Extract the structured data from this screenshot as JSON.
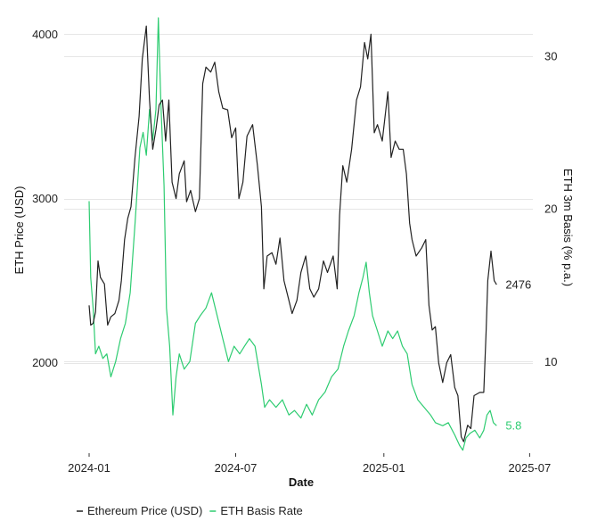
{
  "chart_data": {
    "type": "line",
    "title": "",
    "xlabel": "Date",
    "ylabel_left": "ETH Price (USD)",
    "ylabel_right": "ETH 3m Basis (% p.a.)",
    "x_range": [
      "2023-12-01",
      "2025-07-05"
    ],
    "x_ticks": [
      {
        "date": "2024-01-01",
        "label": "2024-01"
      },
      {
        "date": "2024-07-01",
        "label": "2024-07"
      },
      {
        "date": "2025-01-01",
        "label": "2025-01"
      },
      {
        "date": "2025-07-01",
        "label": "2025-07"
      }
    ],
    "y_left": {
      "range": [
        1450,
        4100
      ],
      "ticks": [
        2000,
        3000,
        4000
      ],
      "tick_labels": [
        "2000",
        "3000",
        "4000"
      ]
    },
    "y_right": {
      "range": [
        4.0,
        32.5
      ],
      "ticks": [
        10,
        20,
        30
      ],
      "tick_labels": [
        "10",
        "20",
        "30"
      ]
    },
    "grid": "horizontal",
    "legend_position": "bottom",
    "series": [
      {
        "name": "Ethereum Price (USD)",
        "axis": "left",
        "color": "#222222",
        "end_label": "2476",
        "points": [
          [
            "2024-01-01",
            2350
          ],
          [
            "2024-01-03",
            2230
          ],
          [
            "2024-01-06",
            2240
          ],
          [
            "2024-01-09",
            2310
          ],
          [
            "2024-01-12",
            2620
          ],
          [
            "2024-01-15",
            2520
          ],
          [
            "2024-01-20",
            2480
          ],
          [
            "2024-01-24",
            2230
          ],
          [
            "2024-01-28",
            2280
          ],
          [
            "2024-02-02",
            2300
          ],
          [
            "2024-02-07",
            2380
          ],
          [
            "2024-02-10",
            2500
          ],
          [
            "2024-02-14",
            2750
          ],
          [
            "2024-02-18",
            2880
          ],
          [
            "2024-02-22",
            2950
          ],
          [
            "2024-02-27",
            3250
          ],
          [
            "2024-03-03",
            3500
          ],
          [
            "2024-03-07",
            3850
          ],
          [
            "2024-03-12",
            4050
          ],
          [
            "2024-03-16",
            3600
          ],
          [
            "2024-03-20",
            3300
          ],
          [
            "2024-03-24",
            3420
          ],
          [
            "2024-03-28",
            3570
          ],
          [
            "2024-04-01",
            3600
          ],
          [
            "2024-04-05",
            3350
          ],
          [
            "2024-04-09",
            3600
          ],
          [
            "2024-04-13",
            3100
          ],
          [
            "2024-04-18",
            3000
          ],
          [
            "2024-04-22",
            3150
          ],
          [
            "2024-04-28",
            3230
          ],
          [
            "2024-05-01",
            2980
          ],
          [
            "2024-05-06",
            3050
          ],
          [
            "2024-05-12",
            2920
          ],
          [
            "2024-05-17",
            3000
          ],
          [
            "2024-05-21",
            3700
          ],
          [
            "2024-05-25",
            3800
          ],
          [
            "2024-05-31",
            3770
          ],
          [
            "2024-06-05",
            3830
          ],
          [
            "2024-06-10",
            3650
          ],
          [
            "2024-06-15",
            3550
          ],
          [
            "2024-06-21",
            3540
          ],
          [
            "2024-06-26",
            3370
          ],
          [
            "2024-07-01",
            3430
          ],
          [
            "2024-07-05",
            3000
          ],
          [
            "2024-07-10",
            3100
          ],
          [
            "2024-07-15",
            3380
          ],
          [
            "2024-07-22",
            3450
          ],
          [
            "2024-07-28",
            3200
          ],
          [
            "2024-08-02",
            2950
          ],
          [
            "2024-08-05",
            2450
          ],
          [
            "2024-08-09",
            2650
          ],
          [
            "2024-08-15",
            2670
          ],
          [
            "2024-08-20",
            2600
          ],
          [
            "2024-08-25",
            2760
          ],
          [
            "2024-08-30",
            2500
          ],
          [
            "2024-09-05",
            2380
          ],
          [
            "2024-09-09",
            2300
          ],
          [
            "2024-09-15",
            2380
          ],
          [
            "2024-09-20",
            2550
          ],
          [
            "2024-09-26",
            2650
          ],
          [
            "2024-10-01",
            2450
          ],
          [
            "2024-10-06",
            2400
          ],
          [
            "2024-10-12",
            2450
          ],
          [
            "2024-10-18",
            2620
          ],
          [
            "2024-10-23",
            2550
          ],
          [
            "2024-10-30",
            2650
          ],
          [
            "2024-11-04",
            2450
          ],
          [
            "2024-11-07",
            2900
          ],
          [
            "2024-11-11",
            3200
          ],
          [
            "2024-11-16",
            3100
          ],
          [
            "2024-11-22",
            3300
          ],
          [
            "2024-11-28",
            3600
          ],
          [
            "2024-12-03",
            3680
          ],
          [
            "2024-12-08",
            3950
          ],
          [
            "2024-12-12",
            3850
          ],
          [
            "2024-12-16",
            4000
          ],
          [
            "2024-12-20",
            3400
          ],
          [
            "2024-12-24",
            3450
          ],
          [
            "2024-12-30",
            3350
          ],
          [
            "2025-01-06",
            3650
          ],
          [
            "2025-01-10",
            3250
          ],
          [
            "2025-01-15",
            3350
          ],
          [
            "2025-01-20",
            3300
          ],
          [
            "2025-01-25",
            3300
          ],
          [
            "2025-01-29",
            3150
          ],
          [
            "2025-02-02",
            2850
          ],
          [
            "2025-02-05",
            2750
          ],
          [
            "2025-02-10",
            2650
          ],
          [
            "2025-02-17",
            2700
          ],
          [
            "2025-02-22",
            2750
          ],
          [
            "2025-02-26",
            2350
          ],
          [
            "2025-03-02",
            2200
          ],
          [
            "2025-03-06",
            2220
          ],
          [
            "2025-03-10",
            2000
          ],
          [
            "2025-03-15",
            1880
          ],
          [
            "2025-03-20",
            2000
          ],
          [
            "2025-03-25",
            2050
          ],
          [
            "2025-03-30",
            1850
          ],
          [
            "2025-04-03",
            1800
          ],
          [
            "2025-04-07",
            1550
          ],
          [
            "2025-04-10",
            1520
          ],
          [
            "2025-04-15",
            1620
          ],
          [
            "2025-04-19",
            1600
          ],
          [
            "2025-04-23",
            1800
          ],
          [
            "2025-04-30",
            1820
          ],
          [
            "2025-05-05",
            1820
          ],
          [
            "2025-05-08",
            2200
          ],
          [
            "2025-05-10",
            2500
          ],
          [
            "2025-05-14",
            2680
          ],
          [
            "2025-05-18",
            2500
          ],
          [
            "2025-05-21",
            2476
          ]
        ]
      },
      {
        "name": "ETH Basis Rate",
        "axis": "right",
        "color": "#2ecc71",
        "end_label": "5.8",
        "points": [
          [
            "2024-01-01",
            20.5
          ],
          [
            "2024-01-03",
            15.5
          ],
          [
            "2024-01-06",
            13.5
          ],
          [
            "2024-01-09",
            10.5
          ],
          [
            "2024-01-13",
            11.0
          ],
          [
            "2024-01-18",
            10.2
          ],
          [
            "2024-01-23",
            10.5
          ],
          [
            "2024-01-28",
            9.0
          ],
          [
            "2024-02-03",
            10.0
          ],
          [
            "2024-02-09",
            11.5
          ],
          [
            "2024-02-15",
            12.5
          ],
          [
            "2024-02-21",
            14.5
          ],
          [
            "2024-02-27",
            19.0
          ],
          [
            "2024-03-04",
            24.0
          ],
          [
            "2024-03-08",
            25.0
          ],
          [
            "2024-03-12",
            23.5
          ],
          [
            "2024-03-16",
            26.5
          ],
          [
            "2024-03-20",
            24.5
          ],
          [
            "2024-03-24",
            26.5
          ],
          [
            "2024-03-27",
            32.5
          ],
          [
            "2024-03-30",
            27.0
          ],
          [
            "2024-04-03",
            21.5
          ],
          [
            "2024-04-06",
            13.5
          ],
          [
            "2024-04-10",
            11.0
          ],
          [
            "2024-04-14",
            6.5
          ],
          [
            "2024-04-18",
            9.0
          ],
          [
            "2024-04-22",
            10.5
          ],
          [
            "2024-04-28",
            9.5
          ],
          [
            "2024-05-05",
            10.0
          ],
          [
            "2024-05-12",
            12.5
          ],
          [
            "2024-05-18",
            13.0
          ],
          [
            "2024-05-25",
            13.5
          ],
          [
            "2024-06-01",
            14.5
          ],
          [
            "2024-06-08",
            13.0
          ],
          [
            "2024-06-15",
            11.5
          ],
          [
            "2024-06-22",
            10.0
          ],
          [
            "2024-06-29",
            11.0
          ],
          [
            "2024-07-06",
            10.5
          ],
          [
            "2024-07-12",
            11.0
          ],
          [
            "2024-07-18",
            11.5
          ],
          [
            "2024-07-25",
            11.0
          ],
          [
            "2024-08-02",
            8.5
          ],
          [
            "2024-08-06",
            7.0
          ],
          [
            "2024-08-12",
            7.5
          ],
          [
            "2024-08-20",
            7.0
          ],
          [
            "2024-08-28",
            7.5
          ],
          [
            "2024-09-05",
            6.5
          ],
          [
            "2024-09-12",
            6.8
          ],
          [
            "2024-09-20",
            6.3
          ],
          [
            "2024-09-27",
            7.2
          ],
          [
            "2024-10-04",
            6.5
          ],
          [
            "2024-10-12",
            7.5
          ],
          [
            "2024-10-20",
            8.0
          ],
          [
            "2024-10-28",
            9.0
          ],
          [
            "2024-11-05",
            9.5
          ],
          [
            "2024-11-12",
            11.0
          ],
          [
            "2024-11-18",
            12.0
          ],
          [
            "2024-11-25",
            13.0
          ],
          [
            "2024-12-01",
            14.5
          ],
          [
            "2024-12-06",
            15.5
          ],
          [
            "2024-12-10",
            16.5
          ],
          [
            "2024-12-14",
            14.5
          ],
          [
            "2024-12-18",
            13.0
          ],
          [
            "2024-12-24",
            12.0
          ],
          [
            "2024-12-30",
            11.0
          ],
          [
            "2025-01-06",
            12.0
          ],
          [
            "2025-01-12",
            11.5
          ],
          [
            "2025-01-18",
            12.0
          ],
          [
            "2025-01-24",
            11.0
          ],
          [
            "2025-01-30",
            10.5
          ],
          [
            "2025-02-05",
            8.5
          ],
          [
            "2025-02-12",
            7.5
          ],
          [
            "2025-02-20",
            7.0
          ],
          [
            "2025-02-28",
            6.5
          ],
          [
            "2025-03-06",
            6.0
          ],
          [
            "2025-03-15",
            5.8
          ],
          [
            "2025-03-22",
            6.0
          ],
          [
            "2025-03-30",
            5.2
          ],
          [
            "2025-04-05",
            4.5
          ],
          [
            "2025-04-09",
            4.2
          ],
          [
            "2025-04-13",
            5.0
          ],
          [
            "2025-04-18",
            5.3
          ],
          [
            "2025-04-24",
            5.5
          ],
          [
            "2025-04-30",
            5.0
          ],
          [
            "2025-05-05",
            5.5
          ],
          [
            "2025-05-09",
            6.5
          ],
          [
            "2025-05-13",
            6.8
          ],
          [
            "2025-05-17",
            6.0
          ],
          [
            "2025-05-21",
            5.8
          ]
        ]
      }
    ]
  }
}
